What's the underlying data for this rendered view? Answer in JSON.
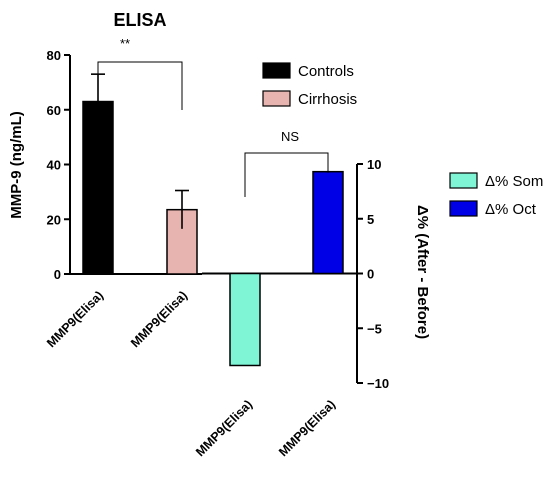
{
  "chart_data": {
    "type": "bar",
    "title": "ELISA",
    "left_axis": {
      "ylabel": "MMP-9 (ng/mL)",
      "ylim": [
        0,
        80
      ],
      "ticks": [
        0,
        20,
        40,
        60,
        80
      ],
      "tick_labels": [
        "0",
        "20",
        "40",
        "60",
        "80"
      ]
    },
    "right_axis": {
      "ylabel": "Δ% (After - Before)",
      "ylim": [
        -10,
        10
      ],
      "ticks": [
        -10,
        -5,
        0,
        5,
        10
      ],
      "tick_labels": [
        "−10",
        "−5",
        "0",
        "5",
        "10"
      ]
    },
    "categories": [
      "MMP9(Elisa)",
      "MMP9(Elisa)",
      "MMP9(Elisa)",
      "MMP9(Elisa)"
    ],
    "series": [
      {
        "name": "Controls",
        "axis": "left",
        "value": 63,
        "error": 10,
        "color": "#000000"
      },
      {
        "name": "Cirrhosis",
        "axis": "left",
        "value": 23.5,
        "error": 7,
        "color": "#e8b4b0"
      },
      {
        "name": "Δ% Som",
        "axis": "right",
        "value": -8.4,
        "error": 0,
        "color": "#7ff5d6"
      },
      {
        "name": "Δ% Oct",
        "axis": "right",
        "value": 9.3,
        "error": 0,
        "color": "#0000e6"
      }
    ],
    "annotations": [
      {
        "text": "**",
        "between": [
          0,
          1
        ]
      },
      {
        "text": "NS",
        "between": [
          2,
          3
        ]
      }
    ],
    "legend": [
      "Controls",
      "Cirrhosis",
      "Δ% Som",
      "Δ% Oct"
    ],
    "grid": false
  }
}
